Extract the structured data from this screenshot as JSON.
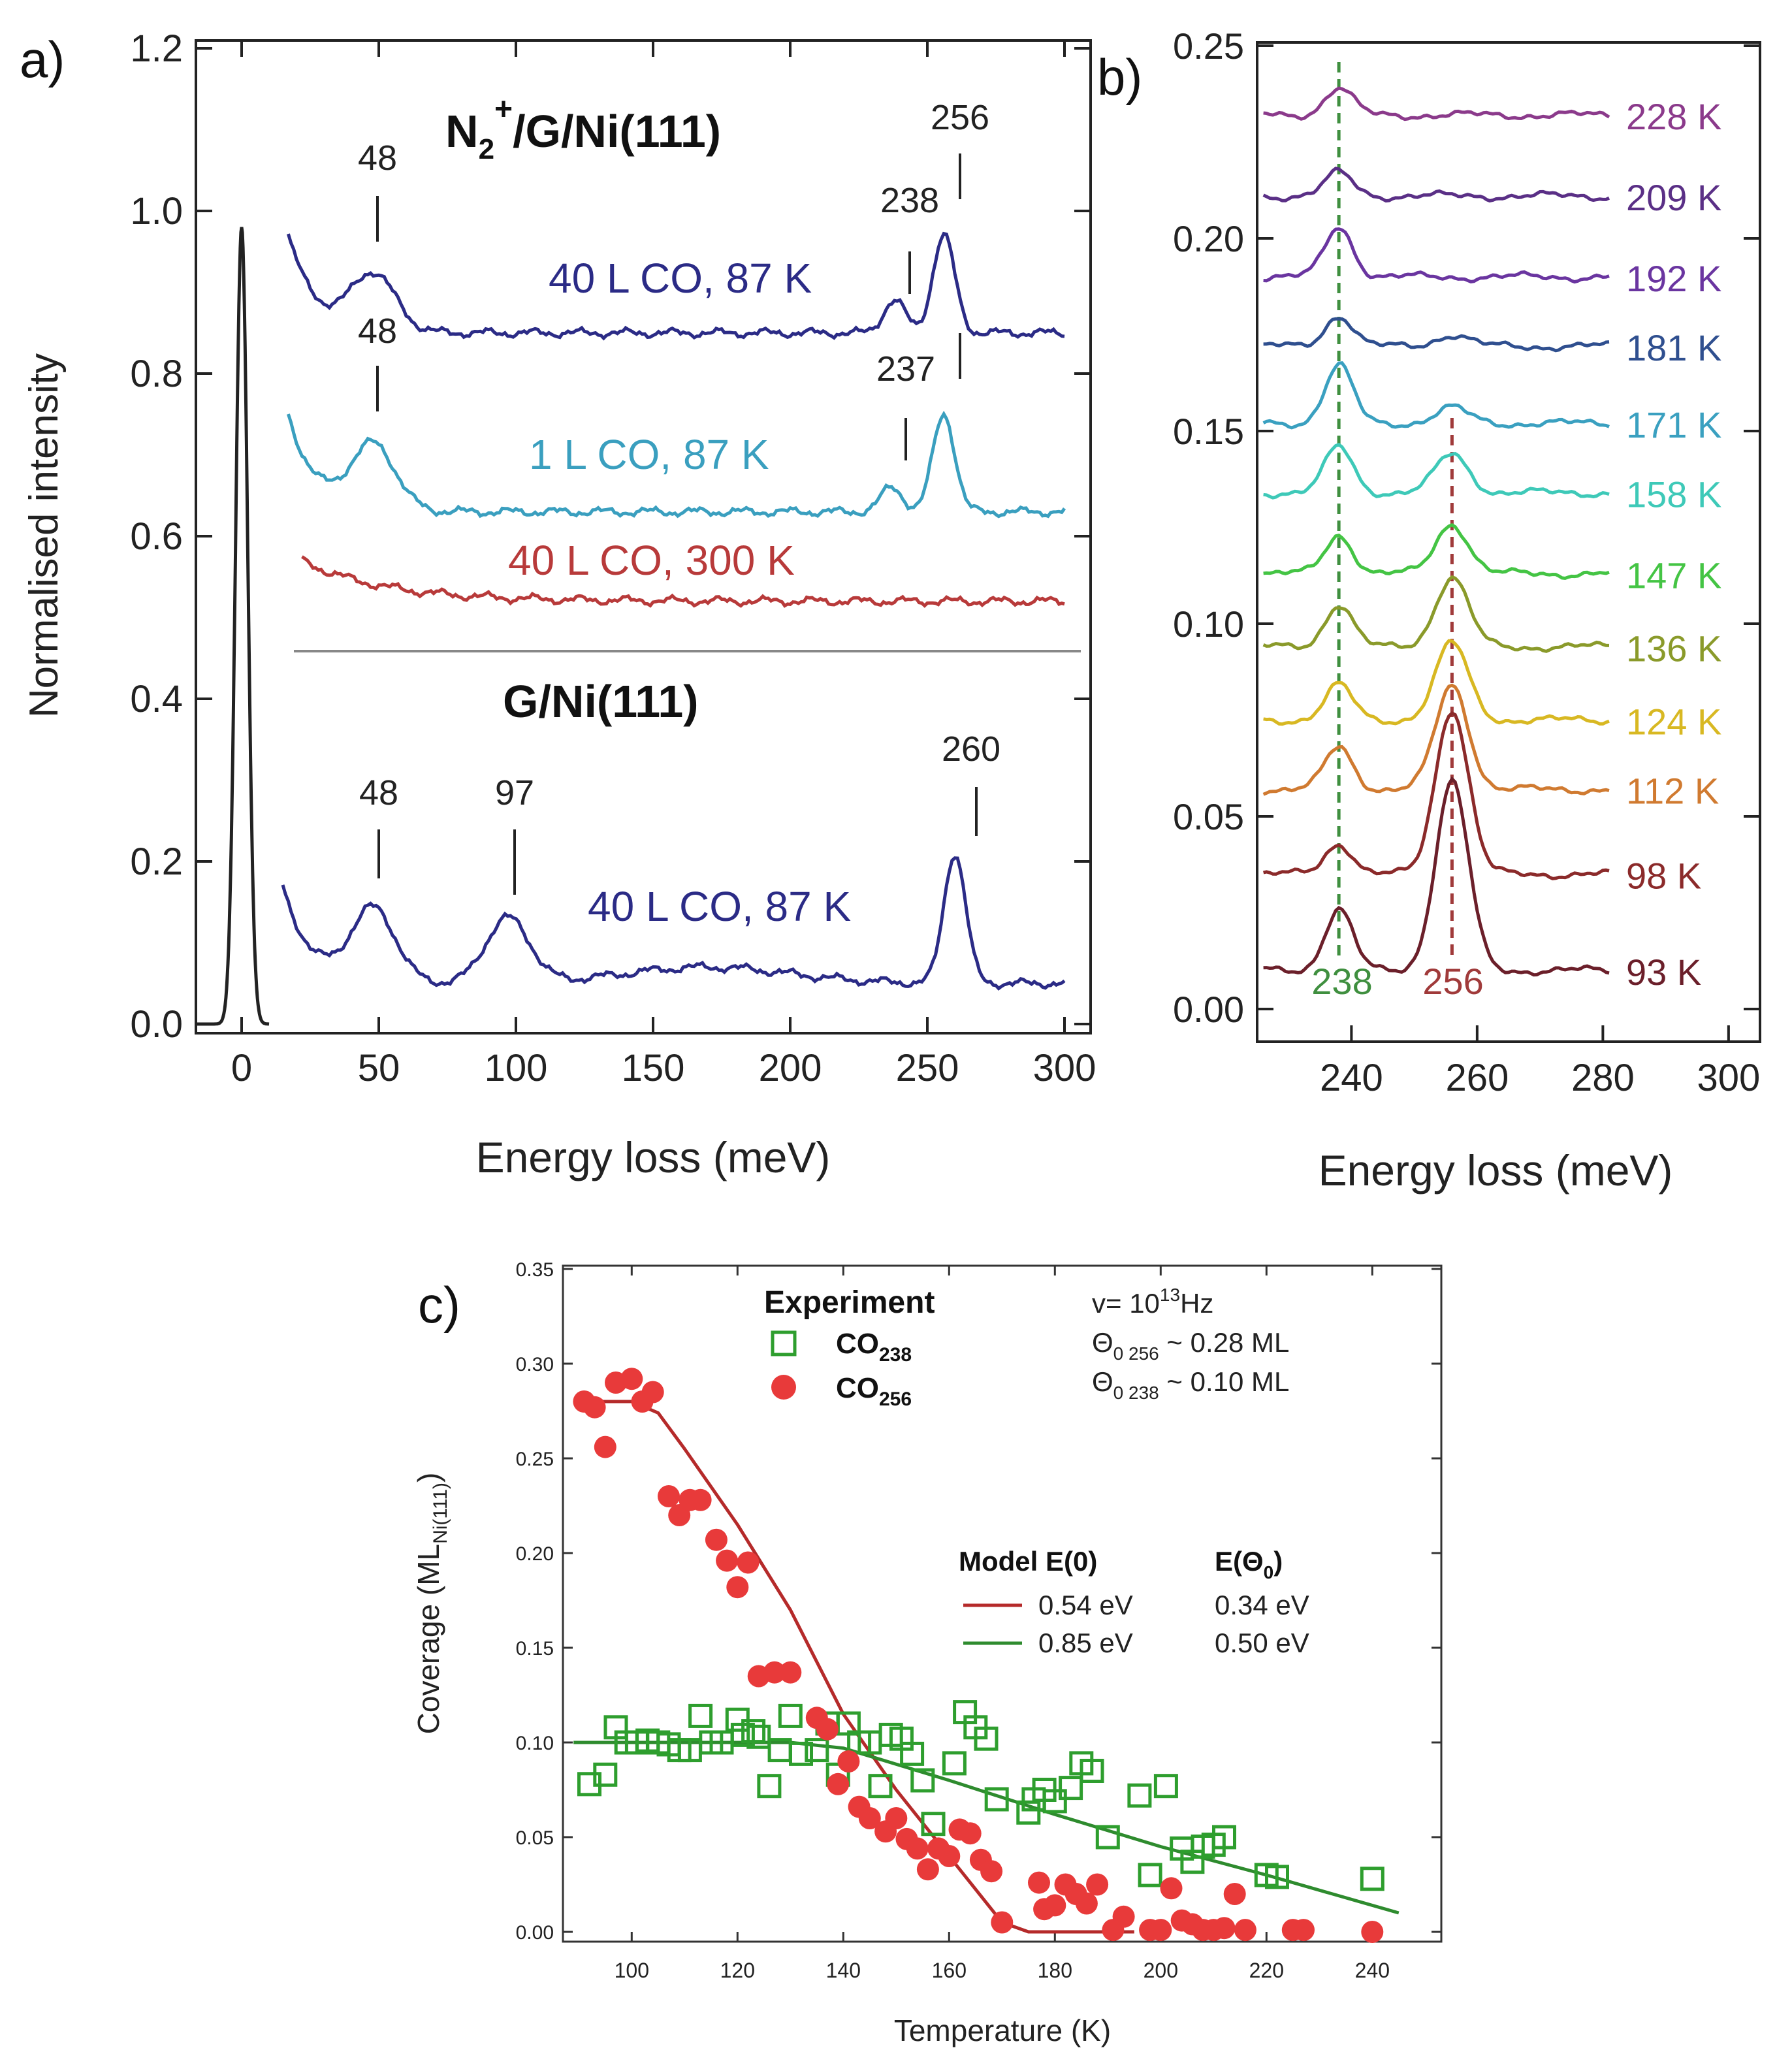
{
  "panels": {
    "a": {
      "letter": "a)",
      "ylabel": "Normalised intensity",
      "xlabel": "Energy loss (meV)",
      "xticks": [
        "0",
        "50",
        "100",
        "150",
        "200",
        "250",
        "300"
      ],
      "yticks": [
        "0.0",
        "0.2",
        "0.4",
        "0.6",
        "0.8",
        "1.0",
        "1.2"
      ],
      "title_top": {
        "base": "N",
        "sub": "2",
        "sup": "+",
        "rest": "/G/Ni(111)"
      },
      "title_bottom": "G/Ni(111)",
      "spectra": [
        {
          "label": "40 L CO, 87 K",
          "color": "#2b2b86"
        },
        {
          "label": "1 L CO, 87 K",
          "color": "#3a9fbf"
        },
        {
          "label": "40 L CO, 300 K",
          "color": "#b83a3a"
        },
        {
          "label": "40 L CO, 87 K",
          "color": "#2b2b86"
        }
      ],
      "peak_labels": [
        "48",
        "256",
        "238",
        "48",
        "237",
        "48",
        "97",
        "260"
      ],
      "elastic_color": "#222222"
    },
    "b": {
      "letter": "b)",
      "xlabel": "Energy loss (meV)",
      "xticks": [
        "240",
        "260",
        "280",
        "300"
      ],
      "yticks": [
        "0.00",
        "0.05",
        "0.10",
        "0.15",
        "0.20",
        "0.25"
      ],
      "temperatures": [
        {
          "label": "228 K",
          "color": "#8b3a8b"
        },
        {
          "label": "209 K",
          "color": "#5a2f86"
        },
        {
          "label": "192 K",
          "color": "#6a35a0"
        },
        {
          "label": "181 K",
          "color": "#2f4f8f"
        },
        {
          "label": "171 K",
          "color": "#3aa0c0"
        },
        {
          "label": "158 K",
          "color": "#3ec9b8"
        },
        {
          "label": "147 K",
          "color": "#44c444"
        },
        {
          "label": "136 K",
          "color": "#8a9a2a"
        },
        {
          "label": "124 K",
          "color": "#d8b822"
        },
        {
          "label": "112 K",
          "color": "#d07a30"
        },
        {
          "label": "98 K",
          "color": "#8b2a2a"
        },
        {
          "label": "93 K",
          "color": "#6b1f2a"
        }
      ],
      "marker_labels": [
        "238",
        "256"
      ],
      "marker_colors": [
        "#3f8f3f",
        "#a03a3a"
      ]
    },
    "c": {
      "letter": "c)",
      "ylabel_base": "Coverage (ML",
      "ylabel_sub": "Ni(111)",
      "ylabel_end": ")",
      "xlabel": "Temperature (K)",
      "xticks": [
        "100",
        "120",
        "140",
        "160",
        "180",
        "200",
        "220",
        "240"
      ],
      "yticks": [
        "0.00",
        "0.05",
        "0.10",
        "0.15",
        "0.20",
        "0.25",
        "0.30",
        "0.35"
      ],
      "legend_title": "Experiment",
      "legend_items": [
        {
          "base": "CO",
          "sub": "238"
        },
        {
          "base": "CO",
          "sub": "256"
        }
      ],
      "params": {
        "nu_base": "v= 10",
        "nu_sup": "13",
        "nu_unit": "Hz",
        "theta256_base": "Θ",
        "theta256_sub": "0 256",
        "theta256_val": " ~ 0.28 ML",
        "theta238_base": "Θ",
        "theta238_sub": "0 238",
        "theta238_val": " ~ 0.10 ML"
      },
      "model": {
        "header1": "Model E(0)",
        "header2_base": "E(Θ",
        "header2_sub": "0",
        "header2_end": ")",
        "rows": [
          {
            "e0": "0.54 eV",
            "etheta": "0.34 eV",
            "color": "#b52a2a"
          },
          {
            "e0": "0.85 eV",
            "etheta": "0.50 eV",
            "color": "#2e8b2e"
          }
        ]
      },
      "green_color": "#2e9e2e",
      "red_color": "#e83a3a"
    }
  },
  "chart_data": [
    {
      "type": "line",
      "panel": "a",
      "title": "N2+/G/Ni(111) and G/Ni(111)",
      "xlabel": "Energy loss (meV)",
      "ylabel": "Normalised intensity",
      "xlim": [
        -17,
        300
      ],
      "ylim": [
        0,
        1.2
      ],
      "elastic_peak": {
        "x": 0,
        "height": 0.98
      },
      "series": [
        {
          "name": "40 L CO, 87 K (N2+/G/Ni(111))",
          "baseline": 0.85,
          "peaks": [
            {
              "x": 48,
              "h": 0.07
            },
            {
              "x": 238,
              "h": 0.04
            },
            {
              "x": 256,
              "h": 0.12
            }
          ]
        },
        {
          "name": "1 L CO, 87 K (N2+/G/Ni(111))",
          "baseline": 0.63,
          "peaks": [
            {
              "x": 48,
              "h": 0.08
            },
            {
              "x": 237,
              "h": 0.03
            },
            {
              "x": 256,
              "h": 0.12
            }
          ]
        },
        {
          "name": "40 L CO, 300 K (N2+/G/Ni(111))",
          "baseline": 0.52,
          "peaks": []
        },
        {
          "name": "40 L CO, 87 K (G/Ni(111))",
          "baseline": 0.05,
          "peaks": [
            {
              "x": 48,
              "h": 0.09
            },
            {
              "x": 97,
              "h": 0.08
            },
            {
              "x": 260,
              "h": 0.16
            }
          ]
        }
      ]
    },
    {
      "type": "line",
      "panel": "b",
      "xlabel": "Energy loss (meV)",
      "xlim": [
        225,
        305
      ],
      "ylim": [
        0,
        0.25
      ],
      "markers": [
        238,
        256
      ],
      "series": [
        {
          "name": "228 K",
          "offset": 0.232,
          "a238": 0.007,
          "a256": 0.0
        },
        {
          "name": "209 K",
          "offset": 0.211,
          "a238": 0.006,
          "a256": 0.0
        },
        {
          "name": "192 K",
          "offset": 0.19,
          "a238": 0.013,
          "a256": 0.0
        },
        {
          "name": "181 K",
          "offset": 0.172,
          "a238": 0.008,
          "a256": 0.003
        },
        {
          "name": "171 K",
          "offset": 0.152,
          "a238": 0.015,
          "a256": 0.004
        },
        {
          "name": "158 K",
          "offset": 0.134,
          "a238": 0.012,
          "a256": 0.01
        },
        {
          "name": "147 K",
          "offset": 0.113,
          "a238": 0.01,
          "a256": 0.013
        },
        {
          "name": "136 K",
          "offset": 0.094,
          "a238": 0.011,
          "a256": 0.018
        },
        {
          "name": "124 K",
          "offset": 0.075,
          "a238": 0.009,
          "a256": 0.02
        },
        {
          "name": "112 K",
          "offset": 0.057,
          "a238": 0.011,
          "a256": 0.027
        },
        {
          "name": "98 K",
          "offset": 0.035,
          "a238": 0.008,
          "a256": 0.043
        },
        {
          "name": "93 K",
          "offset": 0.01,
          "a238": 0.016,
          "a256": 0.049
        }
      ]
    },
    {
      "type": "scatter",
      "panel": "c",
      "xlabel": "Temperature (K)",
      "ylabel": "Coverage (ML Ni(111))",
      "xlim": [
        87,
        253
      ],
      "ylim": [
        0,
        0.35
      ],
      "series": [
        {
          "name": "CO 238",
          "marker": "open-square",
          "points": [
            [
              92,
              0.078
            ],
            [
              95,
              0.083
            ],
            [
              97,
              0.108
            ],
            [
              99,
              0.1
            ],
            [
              101,
              0.1
            ],
            [
              103,
              0.101
            ],
            [
              105,
              0.1
            ],
            [
              107,
              0.099
            ],
            [
              109,
              0.096
            ],
            [
              111,
              0.096
            ],
            [
              113,
              0.114
            ],
            [
              115,
              0.1
            ],
            [
              117,
              0.1
            ],
            [
              120,
              0.112
            ],
            [
              121,
              0.104
            ],
            [
              123,
              0.106
            ],
            [
              124,
              0.103
            ],
            [
              126,
              0.077
            ],
            [
              128,
              0.096
            ],
            [
              130,
              0.114
            ],
            [
              132,
              0.094
            ],
            [
              135,
              0.096
            ],
            [
              137,
              0.11
            ],
            [
              139,
              0.083
            ],
            [
              141,
              0.11
            ],
            [
              143,
              0.1
            ],
            [
              145,
              0.1
            ],
            [
              147,
              0.077
            ],
            [
              149,
              0.104
            ],
            [
              151,
              0.102
            ],
            [
              153,
              0.094
            ],
            [
              155,
              0.08
            ],
            [
              157,
              0.057
            ],
            [
              161,
              0.089
            ],
            [
              163,
              0.116
            ],
            [
              165,
              0.108
            ],
            [
              167,
              0.102
            ],
            [
              169,
              0.07
            ],
            [
              175,
              0.063
            ],
            [
              176,
              0.07
            ],
            [
              178,
              0.075
            ],
            [
              180,
              0.069
            ],
            [
              183,
              0.076
            ],
            [
              185,
              0.089
            ],
            [
              187,
              0.085
            ],
            [
              190,
              0.05
            ],
            [
              196,
              0.072
            ],
            [
              198,
              0.03
            ],
            [
              201,
              0.077
            ],
            [
              204,
              0.044
            ],
            [
              206,
              0.037
            ],
            [
              208,
              0.045
            ],
            [
              210,
              0.046
            ],
            [
              212,
              0.05
            ],
            [
              220,
              0.03
            ],
            [
              222,
              0.029
            ],
            [
              240,
              0.028
            ]
          ]
        },
        {
          "name": "CO 256",
          "marker": "filled-circle",
          "points": [
            [
              91,
              0.28
            ],
            [
              93,
              0.277
            ],
            [
              95,
              0.256
            ],
            [
              97,
              0.29
            ],
            [
              100,
              0.292
            ],
            [
              102,
              0.28
            ],
            [
              104,
              0.285
            ],
            [
              107,
              0.23
            ],
            [
              109,
              0.22
            ],
            [
              111,
              0.228
            ],
            [
              113,
              0.228
            ],
            [
              116,
              0.207
            ],
            [
              118,
              0.196
            ],
            [
              120,
              0.182
            ],
            [
              122,
              0.195
            ],
            [
              124,
              0.135
            ],
            [
              127,
              0.137
            ],
            [
              130,
              0.137
            ],
            [
              135,
              0.113
            ],
            [
              137,
              0.107
            ],
            [
              139,
              0.078
            ],
            [
              141,
              0.09
            ],
            [
              143,
              0.066
            ],
            [
              145,
              0.06
            ],
            [
              148,
              0.053
            ],
            [
              150,
              0.06
            ],
            [
              152,
              0.049
            ],
            [
              154,
              0.044
            ],
            [
              156,
              0.033
            ],
            [
              158,
              0.044
            ],
            [
              160,
              0.04
            ],
            [
              162,
              0.054
            ],
            [
              164,
              0.052
            ],
            [
              166,
              0.038
            ],
            [
              168,
              0.032
            ],
            [
              170,
              0.005
            ],
            [
              177,
              0.026
            ],
            [
              178,
              0.012
            ],
            [
              180,
              0.014
            ],
            [
              182,
              0.025
            ],
            [
              184,
              0.02
            ],
            [
              186,
              0.015
            ],
            [
              188,
              0.025
            ],
            [
              191,
              0.001
            ],
            [
              193,
              0.008
            ],
            [
              198,
              0.001
            ],
            [
              200,
              0.001
            ],
            [
              202,
              0.023
            ],
            [
              204,
              0.006
            ],
            [
              206,
              0.004
            ],
            [
              208,
              0.001
            ],
            [
              210,
              0.001
            ],
            [
              212,
              0.002
            ],
            [
              214,
              0.02
            ],
            [
              216,
              0.001
            ],
            [
              225,
              0.001
            ],
            [
              227,
              0.001
            ],
            [
              240,
              0.0
            ]
          ]
        },
        {
          "name": "Model 0.54 eV",
          "marker": "line",
          "points": [
            [
              91,
              0.28
            ],
            [
              100,
              0.28
            ],
            [
              105,
              0.274
            ],
            [
              110,
              0.255
            ],
            [
              120,
              0.215
            ],
            [
              130,
              0.17
            ],
            [
              140,
              0.115
            ],
            [
              150,
              0.075
            ],
            [
              160,
              0.04
            ],
            [
              170,
              0.005
            ],
            [
              175,
              0.0
            ],
            [
              195,
              0.0
            ]
          ]
        },
        {
          "name": "Model 0.85 eV",
          "marker": "line",
          "points": [
            [
              89,
              0.1
            ],
            [
              110,
              0.1
            ],
            [
              130,
              0.1
            ],
            [
              140,
              0.097
            ],
            [
              160,
              0.08
            ],
            [
              180,
              0.062
            ],
            [
              200,
              0.045
            ],
            [
              220,
              0.03
            ],
            [
              245,
              0.01
            ]
          ]
        }
      ]
    }
  ]
}
